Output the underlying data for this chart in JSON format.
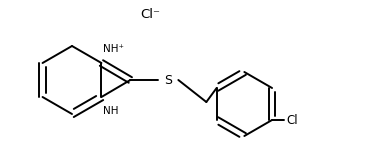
{
  "bg_color": "#ffffff",
  "line_color": "#000000",
  "line_width": 1.4,
  "font_size_labels": 7.5,
  "font_size_counter_ion": 9.5,
  "cl_minus_text": "Cl⁻",
  "nh_plus_text": "NH⁺",
  "nh_text": "NH",
  "s_text": "S",
  "cl_text": "Cl"
}
